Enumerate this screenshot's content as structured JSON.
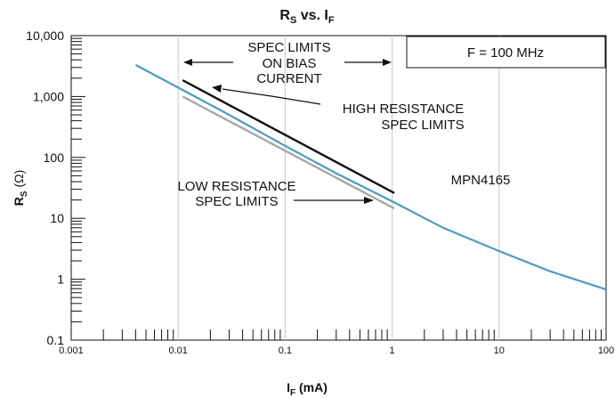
{
  "chart_data": {
    "type": "line",
    "title": "R",
    "title_sub": "S",
    "title_mid": " vs. I",
    "title_sub2": "F",
    "xlabel": "I",
    "xlabel_sub": "F",
    "xlabel_unit": " (mA)",
    "ylabel": "R",
    "ylabel_sub": "S",
    "ylabel_unit": " (Ω)",
    "x_scale": "log",
    "y_scale": "log",
    "xlim": [
      0.001,
      100
    ],
    "ylim": [
      0.1,
      10000
    ],
    "x_tick_labels": [
      "0.001",
      "0.01",
      "0.1",
      "1",
      "10",
      "100"
    ],
    "y_tick_labels": [
      "0.1",
      "1",
      "10",
      "100",
      "1,000",
      "10,000"
    ],
    "grid": "vertical-decades",
    "series": [
      {
        "color": "#4e9bc0",
        "x": [
          0.004,
          0.01,
          0.03,
          0.1,
          0.3,
          1,
          3,
          10,
          30,
          100
        ],
        "y": [
          3300,
          1400,
          500,
          155,
          55,
          19,
          7,
          2.9,
          1.35,
          0.68
        ]
      },
      {
        "color": "#111111",
        "x": [
          0.011,
          1.05
        ],
        "y": [
          1850,
          26
        ]
      },
      {
        "color": "#a8a8a8",
        "x": [
          0.011,
          1.05
        ],
        "y": [
          1000,
          14.5
        ]
      }
    ],
    "annotations": {
      "freq_box": "F = 100 MHz",
      "spec_bias_1": "SPEC LIMITS",
      "spec_bias_2": "ON BIAS",
      "spec_bias_3": "CURRENT",
      "high_res_1": "HIGH RESISTANCE",
      "high_res_2": "SPEC LIMITS",
      "low_res_1": "LOW RESISTANCE",
      "low_res_2": "SPEC LIMITS",
      "device": "MPN4165"
    }
  }
}
